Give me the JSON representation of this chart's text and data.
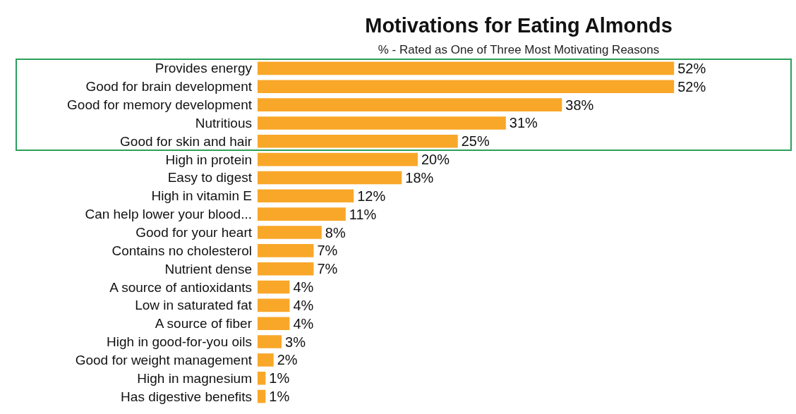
{
  "chart_data": {
    "type": "bar",
    "orientation": "horizontal",
    "title": "Motivations for Eating Almonds",
    "subtitle": "% - Rated as One of Three Most Motivating Reasons",
    "categories": [
      "Provides energy",
      "Good for brain development",
      "Good for memory development",
      "Nutritious",
      "Good for skin and hair",
      "High in protein",
      "Easy to digest",
      "High in vitamin E",
      "Can help lower your blood...",
      "Good for your heart",
      "Contains no cholesterol",
      "Nutrient dense",
      "A source of antioxidants",
      "Low in saturated fat",
      "A source of fiber",
      "High in good-for-you oils",
      "Good for weight management",
      "High in magnesium",
      "Has digestive benefits"
    ],
    "values": [
      52,
      52,
      38,
      31,
      25,
      20,
      18,
      12,
      11,
      8,
      7,
      7,
      4,
      4,
      4,
      3,
      2,
      1,
      1
    ],
    "value_labels": [
      "52%",
      "52%",
      "38%",
      "31%",
      "25%",
      "20%",
      "18%",
      "12%",
      "11%",
      "8%",
      "7%",
      "7%",
      "4%",
      "4%",
      "4%",
      "3%",
      "2%",
      "1%",
      "1%"
    ],
    "color": "#f9a729"
  }
}
